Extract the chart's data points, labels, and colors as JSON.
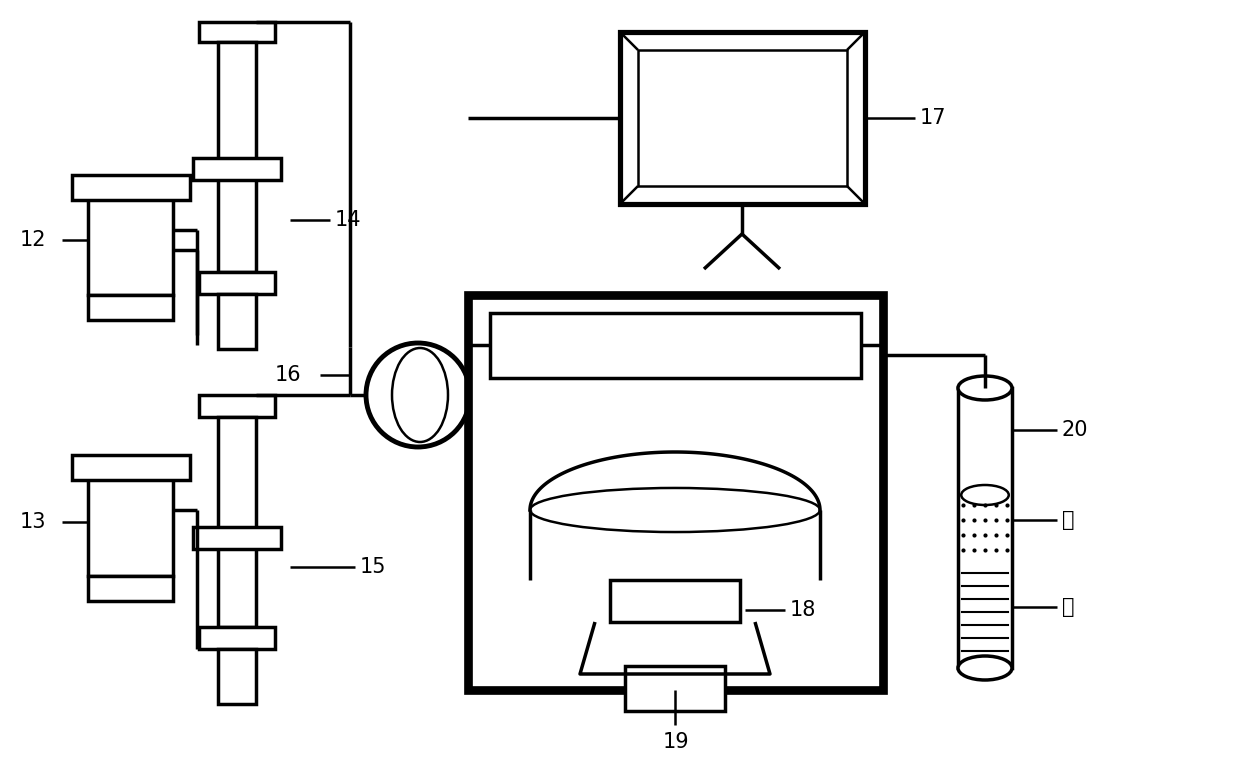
{
  "bg": "#ffffff",
  "lc": "#000000",
  "lw": 2.5,
  "tlw": 1.8,
  "fs": 15,
  "fw": 12.4,
  "fh": 7.62,
  "dpi": 100
}
